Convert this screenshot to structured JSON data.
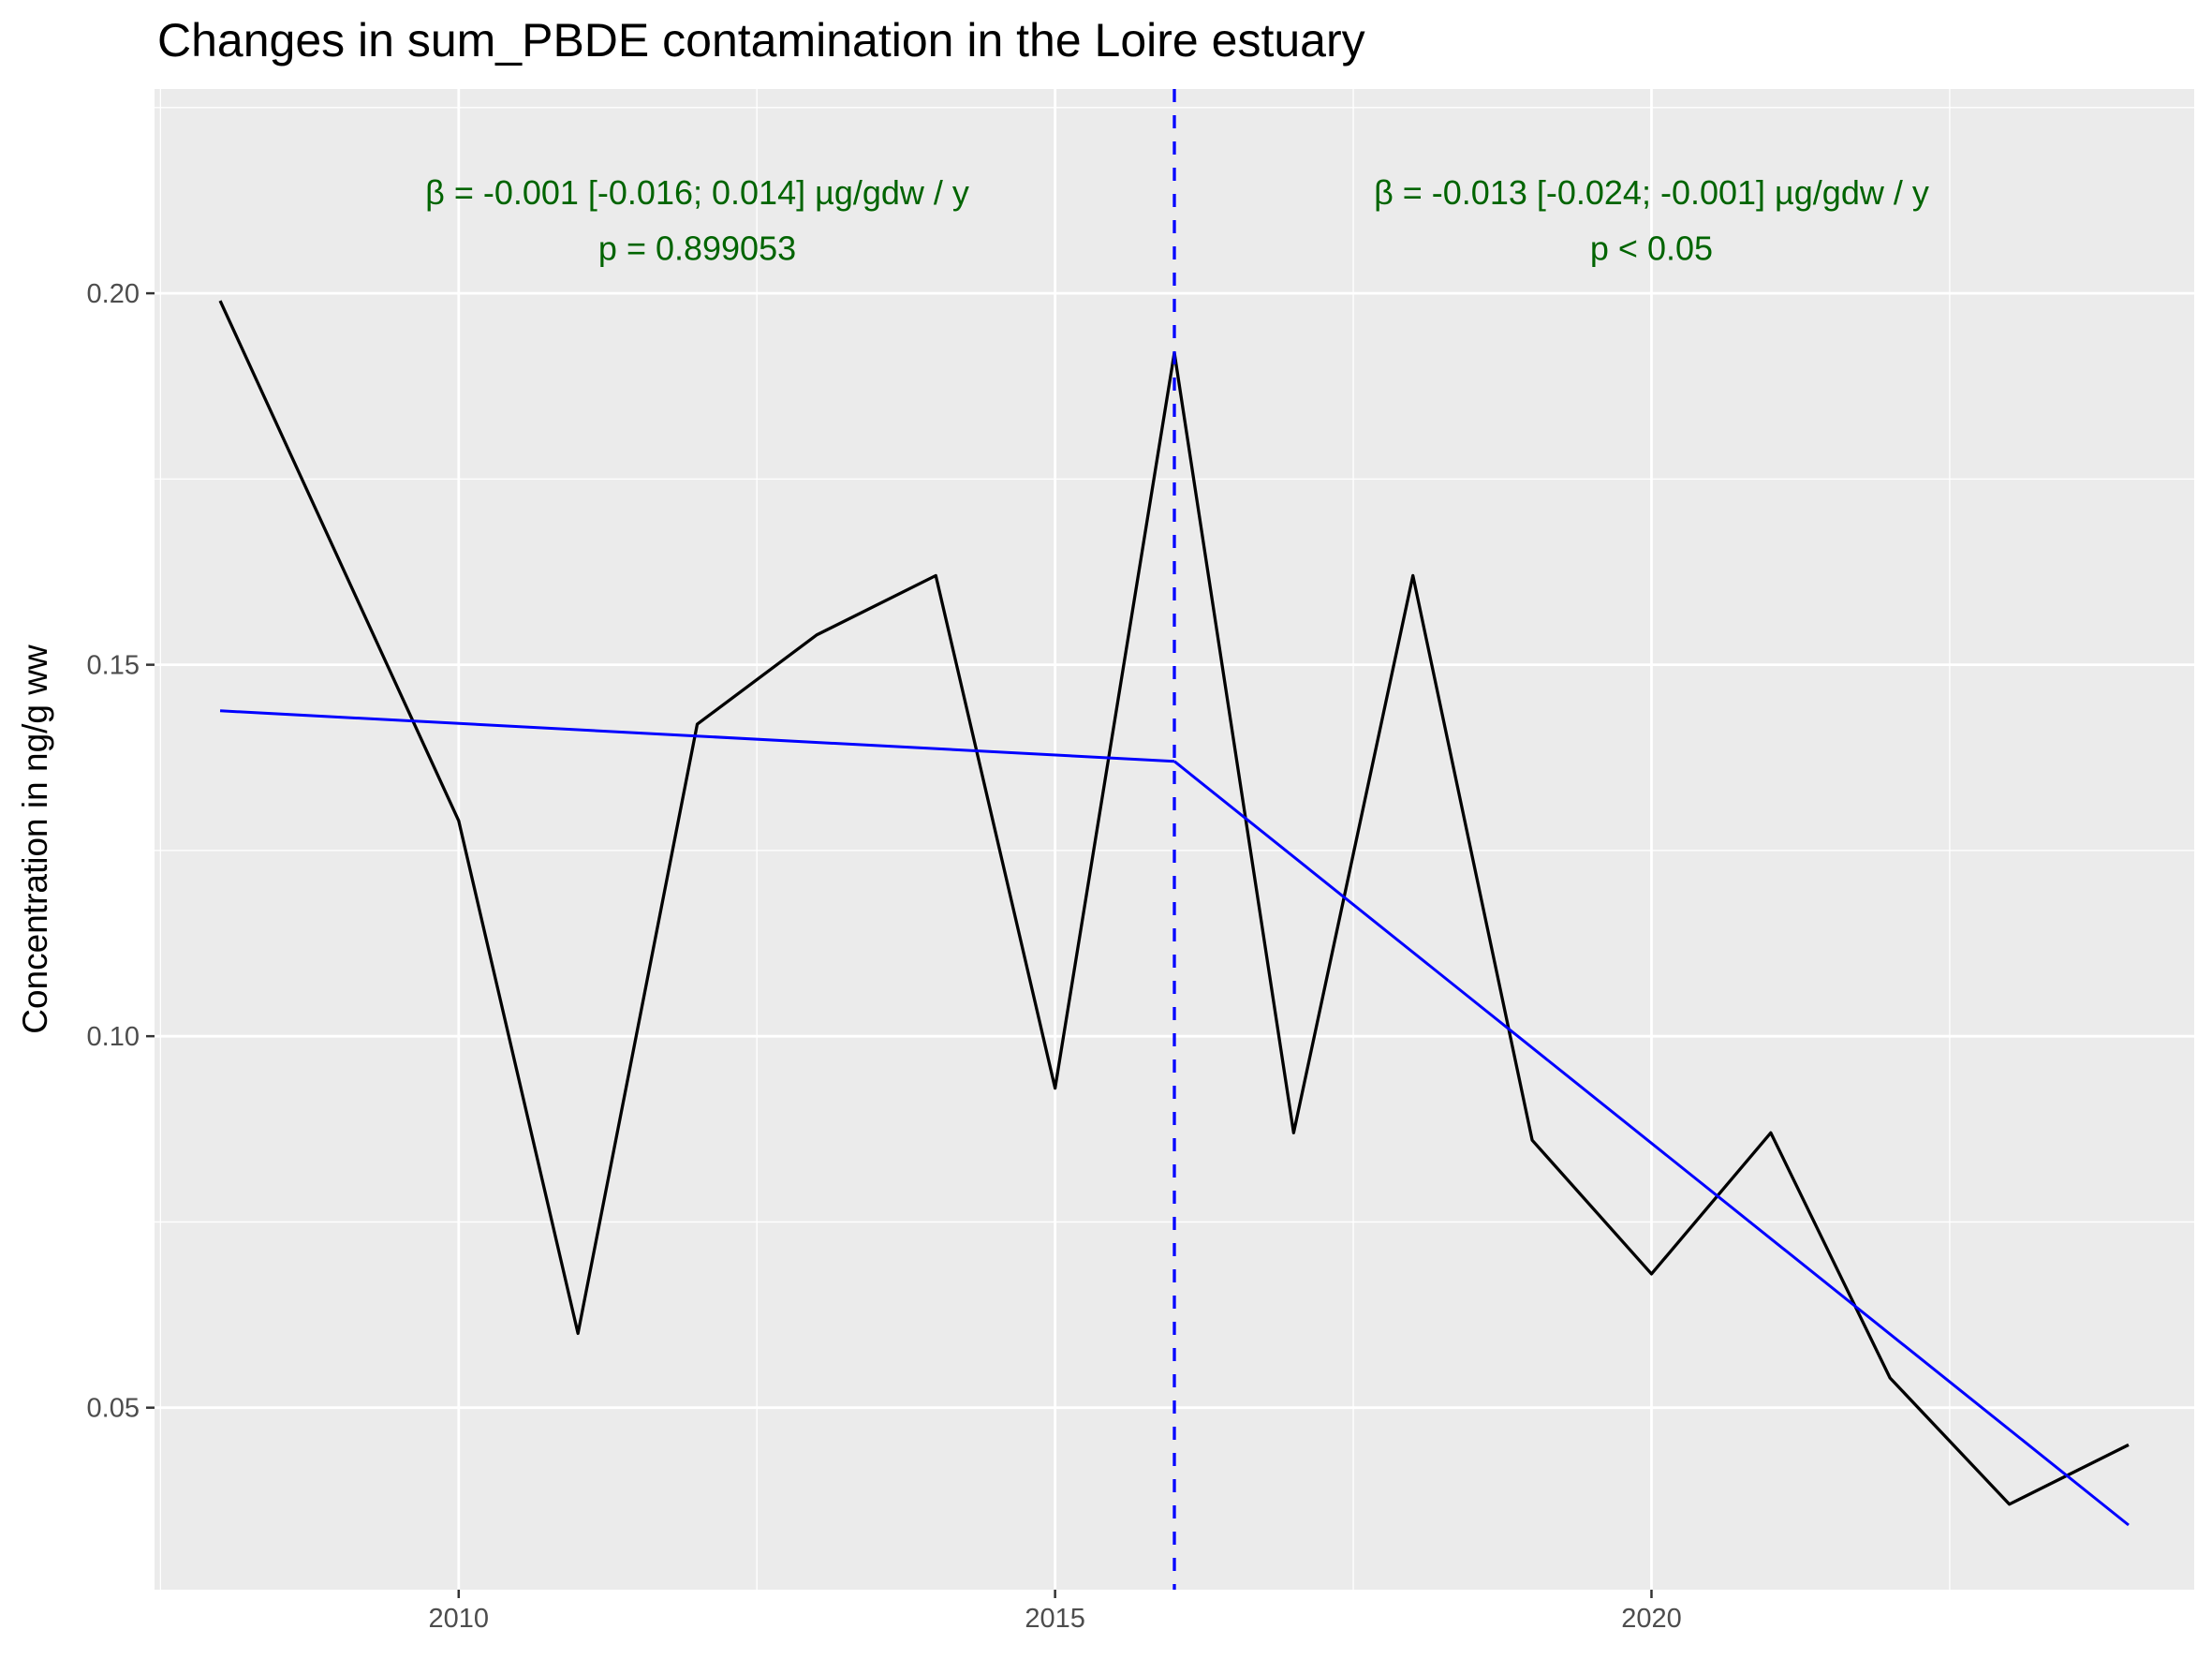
{
  "chart_data": {
    "type": "line",
    "title": "Changes in sum_PBDE contamination in the Loire estuary",
    "xlabel": "",
    "ylabel": "Concentration in ng/g ww",
    "xlim": [
      2007.45,
      2024.55
    ],
    "ylim": [
      0.0255,
      0.2275
    ],
    "x_ticks": [
      2010,
      2015,
      2020
    ],
    "y_ticks": [
      0.05,
      0.1,
      0.15,
      0.2
    ],
    "x_tick_labels": [
      "2010",
      "2015",
      "2020"
    ],
    "y_tick_labels": [
      "0.05",
      "0.10",
      "0.15",
      "0.20"
    ],
    "grid": true,
    "background": "#ebebeb",
    "series": [
      {
        "color": "#000000",
        "x": [
          2008,
          2010,
          2011,
          2012,
          2013,
          2014,
          2015,
          2016,
          2017,
          2018,
          2019,
          2020,
          2021,
          2022,
          2023,
          2024
        ],
        "y": [
          0.199,
          0.129,
          0.06,
          0.142,
          0.154,
          0.162,
          0.093,
          0.192,
          0.087,
          0.162,
          0.086,
          0.068,
          0.087,
          0.054,
          0.037,
          0.045
        ]
      }
    ],
    "trend_segments": [
      {
        "color": "#0000ff",
        "x": [
          2008,
          2016
        ],
        "y": [
          0.1438,
          0.137
        ]
      },
      {
        "color": "#0000ff",
        "x": [
          2016,
          2024
        ],
        "y": [
          0.137,
          0.0342
        ]
      }
    ],
    "breakpoint": {
      "x": 2016,
      "color": "#0000ff",
      "style": "dashed"
    },
    "annotations": [
      {
        "x": 2012,
        "y": 0.2135,
        "text": "β = -0.001 [-0.016; 0.014] µg/gdw / y",
        "color": "#006400"
      },
      {
        "x": 2012,
        "y": 0.206,
        "text": "p = 0.899053",
        "color": "#006400"
      },
      {
        "x": 2020,
        "y": 0.2135,
        "text": "β = -0.013 [-0.024; -0.001] µg/gdw / y",
        "color": "#006400"
      },
      {
        "x": 2020,
        "y": 0.206,
        "text": "p < 0.05",
        "color": "#006400"
      }
    ]
  }
}
